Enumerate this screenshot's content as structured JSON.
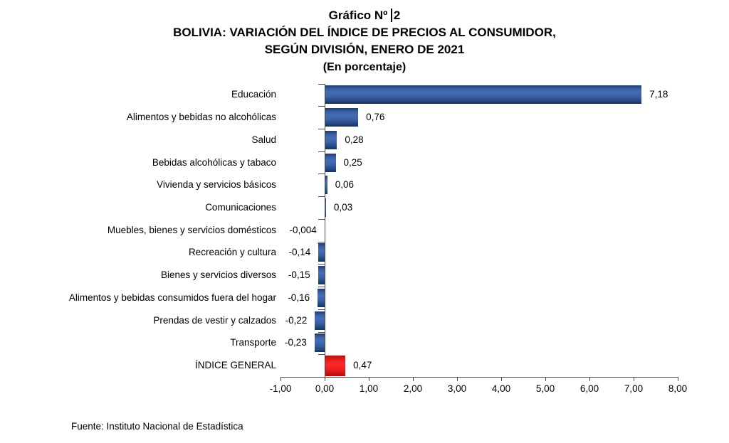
{
  "chart_data": {
    "type": "bar",
    "orientation": "horizontal",
    "title_lines": {
      "line1_prefix": "Gráfico Nº",
      "line1_number": "2",
      "line2": "BOLIVIA: VARIACIÓN DEL ÍNDICE DE PRECIOS AL CONSUMIDOR,",
      "line3": "SEGÚN DIVISIÓN, ENERO DE 2021",
      "line4": "(En porcentaje)"
    },
    "categories": [
      "Educación",
      "Alimentos y bebidas no alcohólicas",
      "Salud",
      "Bebidas alcohólicas y tabaco",
      "Vivienda y servicios básicos",
      "Comunicaciones",
      "Muebles, bienes y servicios domésticos",
      "Recreación y cultura",
      "Bienes y servicios diversos",
      "Alimentos y bebidas consumidos fuera del hogar",
      "Prendas de vestir y calzados",
      "Transporte",
      "ÍNDICE GENERAL"
    ],
    "values": [
      7.18,
      0.76,
      0.28,
      0.25,
      0.06,
      0.03,
      -0.004,
      -0.14,
      -0.15,
      -0.16,
      -0.22,
      -0.23,
      0.47
    ],
    "value_labels": [
      "7,18",
      "0,76",
      "0,28",
      "0,25",
      "0,06",
      "0,03",
      "-0,004",
      "-0,14",
      "-0,15",
      "-0,16",
      "-0,22",
      "-0,23",
      "0,47"
    ],
    "bar_styles": [
      "blue",
      "blue",
      "blue",
      "blue",
      "blue",
      "blue",
      "blue",
      "blue",
      "blue",
      "blue",
      "blue",
      "blue",
      "red"
    ],
    "xlim": [
      -1,
      8
    ],
    "x_tick_labels": [
      "-1,00",
      "0,00",
      "1,00",
      "2,00",
      "3,00",
      "4,00",
      "5,00",
      "6,00",
      "7,00",
      "8,00"
    ],
    "grid": false,
    "legend": "none",
    "colors": {
      "bar_blue": "#3a62a8",
      "bar_red": "#ee1c1c",
      "axis": "#4a4a4a"
    },
    "source_note": "Fuente: Instituto Nacional de Estadística"
  }
}
